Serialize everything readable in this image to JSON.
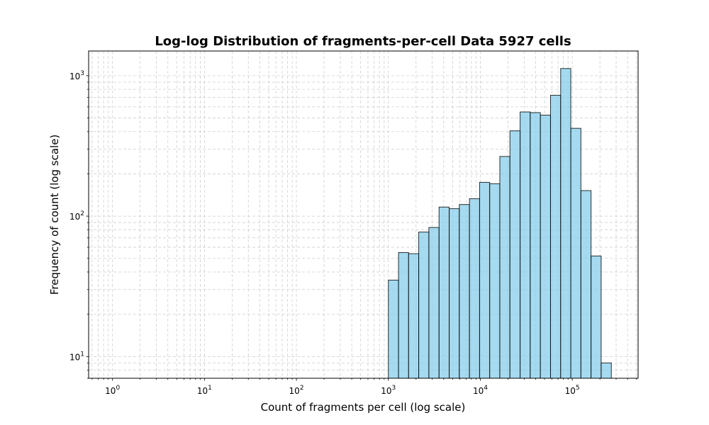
{
  "chart_data": {
    "type": "bar",
    "title": "Log-log Distribution of fragments-per-cell Data 5927 cells",
    "xlabel": "Count of fragments per cell (log scale)",
    "ylabel": "Frequency of count (log scale)",
    "x_scale": "log",
    "y_scale": "log",
    "xlim": [
      0.55,
      520000
    ],
    "ylim": [
      7,
      1500
    ],
    "grid": true,
    "x_ticks": [
      {
        "base": "10",
        "exp": "0",
        "value": 1
      },
      {
        "base": "10",
        "exp": "1",
        "value": 10
      },
      {
        "base": "10",
        "exp": "2",
        "value": 100
      },
      {
        "base": "10",
        "exp": "3",
        "value": 1000
      },
      {
        "base": "10",
        "exp": "4",
        "value": 10000
      },
      {
        "base": "10",
        "exp": "5",
        "value": 100000
      }
    ],
    "y_ticks": [
      {
        "base": "10",
        "exp": "1",
        "value": 10
      },
      {
        "base": "10",
        "exp": "2",
        "value": 100
      },
      {
        "base": "10",
        "exp": "3",
        "value": 1000
      }
    ],
    "bin_edges": [
      1000,
      1290,
      1660,
      2140,
      2760,
      3560,
      4590,
      5910,
      7620,
      9820,
      12650,
      16300,
      21000,
      27100,
      34900,
      45000,
      58000,
      74800,
      96400,
      124200,
      160100,
      206300,
      266000
    ],
    "values": [
      35,
      55,
      54,
      77,
      83,
      116,
      113,
      121,
      133,
      174,
      170,
      266,
      405,
      552,
      546,
      524,
      726,
      1125,
      422,
      152,
      52,
      9
    ],
    "colors": {
      "bar_fill": "#87CEEB",
      "bar_edge": "#000000"
    }
  }
}
